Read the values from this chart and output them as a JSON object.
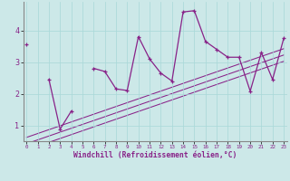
{
  "xlabel": "Windchill (Refroidissement éolien,°C)",
  "background_color": "#cce8e8",
  "line_color": "#882288",
  "x_data": [
    0,
    1,
    2,
    3,
    4,
    5,
    6,
    7,
    8,
    9,
    10,
    11,
    12,
    13,
    14,
    15,
    16,
    17,
    18,
    19,
    20,
    21,
    22,
    23
  ],
  "y_main": [
    3.55,
    null,
    2.45,
    0.88,
    1.45,
    null,
    2.8,
    2.7,
    2.15,
    2.1,
    3.8,
    3.1,
    2.65,
    2.4,
    4.58,
    4.62,
    3.65,
    3.4,
    3.15,
    3.15,
    2.08,
    3.3,
    2.45,
    3.75
  ],
  "straight_lines": [
    [
      0,
      0.62,
      23,
      3.42
    ],
    [
      0,
      0.42,
      23,
      3.22
    ],
    [
      0,
      0.22,
      23,
      3.02
    ]
  ],
  "ylim": [
    0.5,
    4.9
  ],
  "xlim": [
    -0.3,
    23.3
  ],
  "yticks": [
    1,
    2,
    3,
    4
  ],
  "xticks": [
    0,
    1,
    2,
    3,
    4,
    5,
    6,
    7,
    8,
    9,
    10,
    11,
    12,
    13,
    14,
    15,
    16,
    17,
    18,
    19,
    20,
    21,
    22,
    23
  ]
}
